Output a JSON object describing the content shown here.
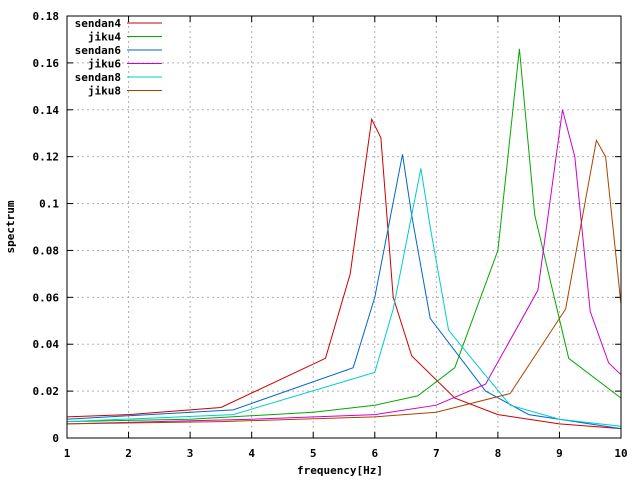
{
  "chart_data": {
    "type": "line",
    "title": "",
    "xlabel": "frequency[Hz]",
    "ylabel": "spectrum",
    "xlim": [
      1,
      10
    ],
    "ylim": [
      0,
      0.18
    ],
    "xticks": [
      "1",
      "2",
      "3",
      "4",
      "5",
      "6",
      "7",
      "8",
      "9",
      "10"
    ],
    "yticks": [
      "0",
      "0.02",
      "0.04",
      "0.06",
      "0.08",
      "0.1",
      "0.12",
      "0.14",
      "0.16",
      "0.18"
    ],
    "grid": true,
    "legend_position": "top-left",
    "series": [
      {
        "name": "sendan4",
        "color": "#cc0000",
        "x": [
          1,
          2,
          3.5,
          5.2,
          5.6,
          5.95,
          6.1,
          6.3,
          6.6,
          7.3,
          8,
          9,
          10
        ],
        "y": [
          0.009,
          0.01,
          0.013,
          0.034,
          0.07,
          0.136,
          0.128,
          0.06,
          0.035,
          0.017,
          0.01,
          0.006,
          0.004
        ]
      },
      {
        "name": "jiku4",
        "color": "#00aa00",
        "x": [
          1,
          3,
          5,
          6,
          6.7,
          7.3,
          8,
          8.35,
          8.6,
          9.15,
          10
        ],
        "y": [
          0.007,
          0.008,
          0.011,
          0.014,
          0.018,
          0.03,
          0.08,
          0.166,
          0.095,
          0.034,
          0.017
        ]
      },
      {
        "name": "sendan6",
        "color": "#0066cc",
        "x": [
          1,
          3.7,
          5.65,
          6,
          6.45,
          6.6,
          6.9,
          7.8,
          8.5,
          10
        ],
        "y": [
          0.008,
          0.012,
          0.03,
          0.06,
          0.121,
          0.095,
          0.051,
          0.02,
          0.01,
          0.004
        ]
      },
      {
        "name": "jiku6",
        "color": "#cc00cc",
        "x": [
          1,
          4,
          6,
          7,
          7.8,
          8.65,
          9.05,
          9.25,
          9.5,
          9.8,
          10
        ],
        "y": [
          0.006,
          0.008,
          0.01,
          0.014,
          0.023,
          0.063,
          0.14,
          0.12,
          0.054,
          0.032,
          0.027
        ]
      },
      {
        "name": "sendan8",
        "color": "#00cccc",
        "x": [
          1,
          3.7,
          6,
          6.3,
          6.75,
          6.9,
          7.2,
          7.6,
          8.2,
          9,
          10
        ],
        "y": [
          0.007,
          0.01,
          0.028,
          0.055,
          0.115,
          0.09,
          0.046,
          0.033,
          0.014,
          0.008,
          0.005
        ]
      },
      {
        "name": "jiku8",
        "color": "#aa4400",
        "x": [
          1,
          3.5,
          6,
          7,
          8.2,
          9.1,
          9.6,
          9.75,
          10
        ],
        "y": [
          0.006,
          0.007,
          0.009,
          0.011,
          0.019,
          0.055,
          0.127,
          0.12,
          0.057
        ]
      }
    ]
  }
}
